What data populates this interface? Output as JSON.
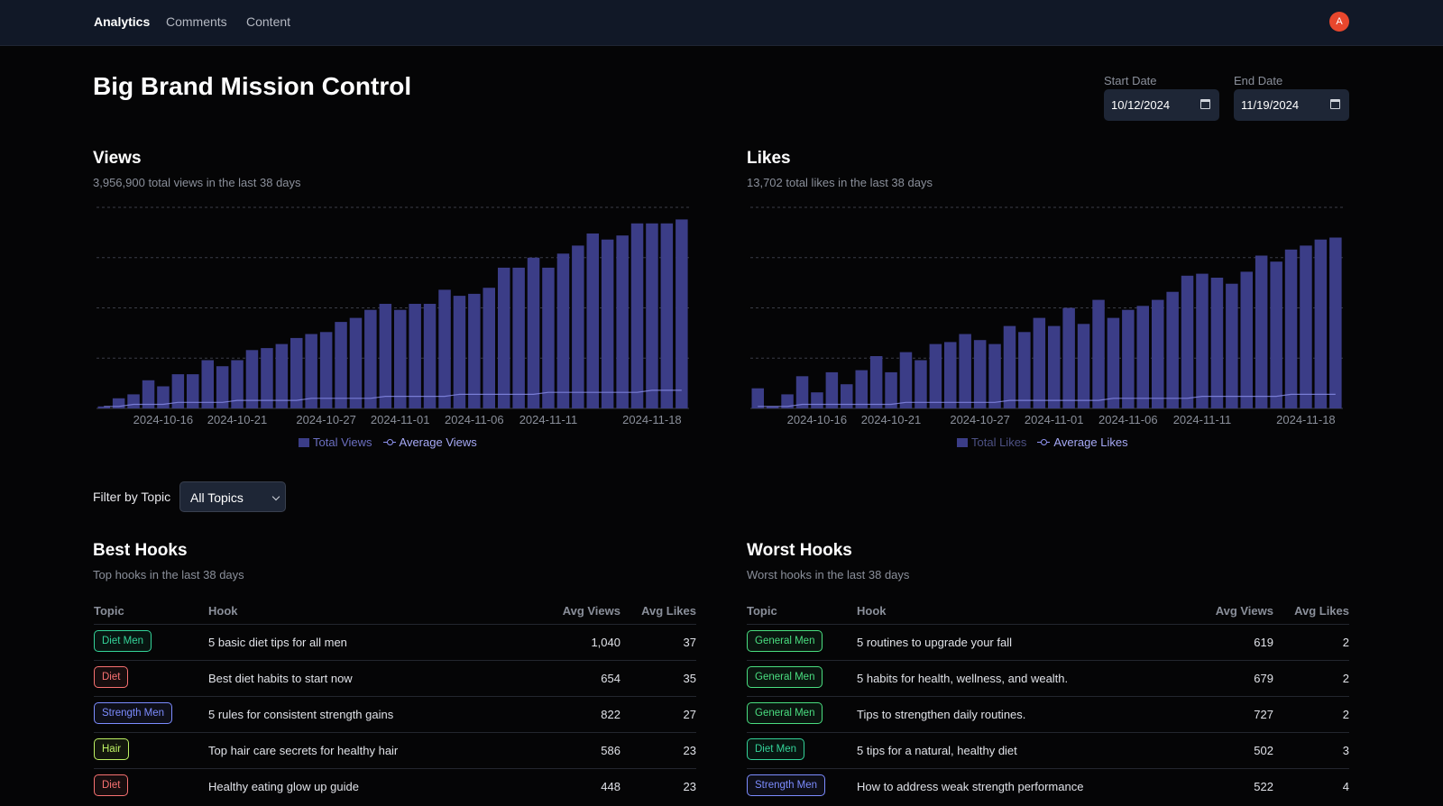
{
  "nav": {
    "links": [
      "Analytics",
      "Comments",
      "Content"
    ],
    "avatar_initial": "A"
  },
  "page": {
    "title": "Big Brand Mission Control"
  },
  "dates": {
    "start_label": "Start Date",
    "start_value": "10/12/2024",
    "end_label": "End Date",
    "end_value": "11/19/2024"
  },
  "views": {
    "title": "Views",
    "subtitle": "3,956,900 total views in the last 38 days",
    "legend": [
      "Total Views",
      "Average Views"
    ]
  },
  "likes": {
    "title": "Likes",
    "subtitle": "13,702 total likes in the last 38 days",
    "legend": [
      "Total Likes",
      "Average Likes"
    ]
  },
  "chart_data": [
    {
      "type": "bar",
      "x_ticks": [
        "2024-10-16",
        "2024-10-21",
        "2024-10-27",
        "2024-11-01",
        "2024-11-06",
        "2024-11-11",
        "2024-11-18"
      ],
      "series": [
        {
          "name": "Total Views",
          "values": [
            1,
            5,
            7,
            14,
            11,
            17,
            17,
            24,
            21,
            24,
            29,
            30,
            32,
            35,
            37,
            38,
            43,
            45,
            49,
            52,
            49,
            52,
            52,
            59,
            56,
            57,
            60,
            70,
            70,
            75,
            70,
            77,
            81,
            87,
            84,
            86,
            92,
            92,
            92,
            94
          ]
        },
        {
          "name": "Average Views",
          "values": [
            1,
            1,
            2,
            2,
            2,
            3,
            3,
            3,
            3,
            4,
            4,
            4,
            4,
            4,
            5,
            5,
            5,
            5,
            5,
            6,
            6,
            6,
            6,
            6,
            7,
            7,
            7,
            7,
            7,
            7,
            8,
            8,
            8,
            8,
            8,
            8,
            8,
            9,
            9,
            9
          ]
        }
      ],
      "grid": true,
      "legend_position": "bottom"
    },
    {
      "type": "bar",
      "x_ticks": [
        "2024-10-16",
        "2024-10-21",
        "2024-10-27",
        "2024-11-01",
        "2024-11-06",
        "2024-11-11",
        "2024-11-18"
      ],
      "series": [
        {
          "name": "Total Likes",
          "values": [
            10,
            1,
            7,
            16,
            8,
            18,
            12,
            19,
            26,
            18,
            28,
            24,
            32,
            33,
            37,
            34,
            32,
            41,
            38,
            45,
            41,
            50,
            42,
            54,
            45,
            49,
            51,
            54,
            58,
            66,
            67,
            65,
            62,
            68,
            76,
            73,
            79,
            81,
            84,
            85
          ]
        },
        {
          "name": "Average Likes",
          "values": [
            1,
            1,
            1,
            2,
            2,
            2,
            2,
            2,
            2,
            2,
            3,
            3,
            3,
            3,
            3,
            3,
            3,
            4,
            4,
            4,
            4,
            4,
            4,
            4,
            5,
            5,
            5,
            5,
            5,
            5,
            6,
            6,
            6,
            6,
            6,
            6,
            7,
            7,
            7,
            7
          ]
        }
      ],
      "grid": true,
      "legend_position": "bottom"
    }
  ],
  "filter": {
    "label": "Filter by Topic",
    "value": "All Topics"
  },
  "best_hooks": {
    "title": "Best Hooks",
    "subtitle": "Top hooks in the last 38 days",
    "columns": [
      "Topic",
      "Hook",
      "Avg Views",
      "Avg Likes"
    ],
    "rows": [
      {
        "topic": "Diet Men",
        "hook": "5 basic diet tips for all men",
        "views": "1,040",
        "likes": "37"
      },
      {
        "topic": "Diet",
        "hook": "Best diet habits to start now",
        "views": "654",
        "likes": "35"
      },
      {
        "topic": "Strength Men",
        "hook": "5 rules for consistent strength gains",
        "views": "822",
        "likes": "27"
      },
      {
        "topic": "Hair",
        "hook": "Top hair care secrets for healthy hair",
        "views": "586",
        "likes": "23"
      },
      {
        "topic": "Diet",
        "hook": "Healthy eating glow up guide",
        "views": "448",
        "likes": "23"
      }
    ]
  },
  "worst_hooks": {
    "title": "Worst Hooks",
    "subtitle": "Worst hooks in the last 38 days",
    "columns": [
      "Topic",
      "Hook",
      "Avg Views",
      "Avg Likes"
    ],
    "rows": [
      {
        "topic": "General Men",
        "hook": "5 routines to upgrade your fall",
        "views": "619",
        "likes": "2"
      },
      {
        "topic": "General Men",
        "hook": "5 habits for health, wellness, and wealth.",
        "views": "679",
        "likes": "2"
      },
      {
        "topic": "General Men",
        "hook": "Tips to strengthen daily routines.",
        "views": "727",
        "likes": "2"
      },
      {
        "topic": "Diet Men",
        "hook": "5 tips for a natural, healthy diet",
        "views": "502",
        "likes": "3"
      },
      {
        "topic": "Strength Men",
        "hook": "How to address weak strength performance",
        "views": "522",
        "likes": "4"
      }
    ]
  },
  "colors": {
    "bar": "#3b3d87",
    "avg_line": "#8f93f0",
    "badge_diet_men": "#34d399",
    "badge_diet": "#f87171",
    "badge_strength_men": "#7c8cff",
    "badge_hair": "#bef264",
    "badge_general_men": "#4ade80"
  }
}
